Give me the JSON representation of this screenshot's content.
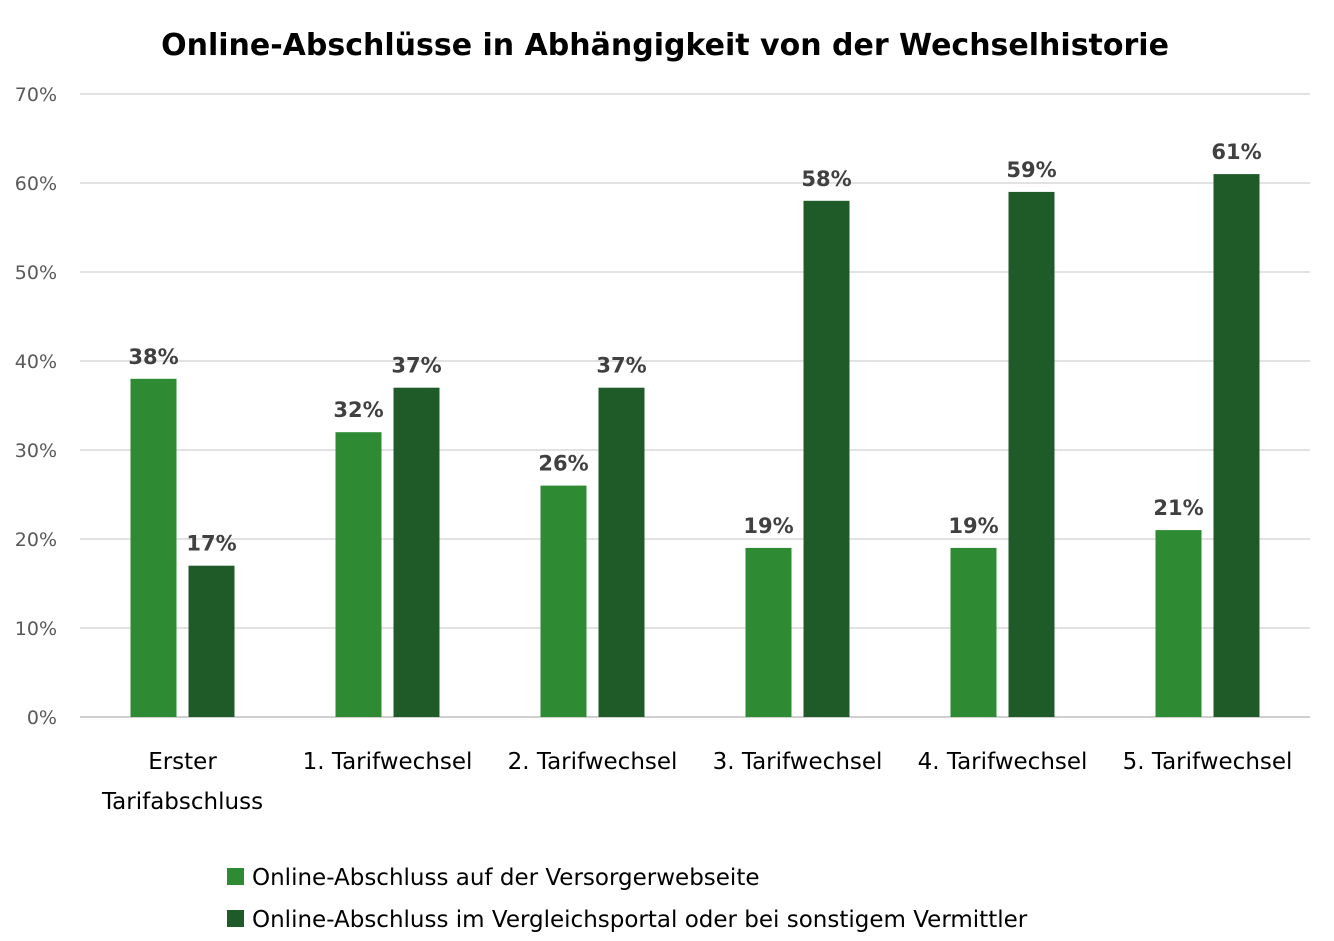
{
  "chart_data": {
    "type": "bar",
    "title": "Online-Abschlüsse in Abhängigkeit von der Wechselhistorie",
    "xlabel": "",
    "ylabel": "",
    "categories": [
      [
        "Erster",
        "Tarifabschluss"
      ],
      [
        "1. Tarifwechsel"
      ],
      [
        "2. Tarifwechsel"
      ],
      [
        "3. Tarifwechsel"
      ],
      [
        "4. Tarifwechsel"
      ],
      [
        "5. Tarifwechsel"
      ]
    ],
    "series": [
      {
        "name": "Online-Abschluss auf der Versorgerwebseite",
        "color": "#2e8b33",
        "values": [
          38,
          32,
          26,
          19,
          19,
          21
        ],
        "labels": [
          "38%",
          "32%",
          "26%",
          "19%",
          "19%",
          "21%"
        ]
      },
      {
        "name": "Online-Abschluss im Vergleichsportal oder bei sonstigem Vermittler",
        "color": "#1e5b28",
        "values": [
          17,
          37,
          37,
          58,
          59,
          61
        ],
        "labels": [
          "17%",
          "37%",
          "37%",
          "58%",
          "59%",
          "61%"
        ]
      }
    ],
    "ylim": [
      0,
      70
    ],
    "yticks": [
      0,
      10,
      20,
      30,
      40,
      50,
      60,
      70
    ],
    "ytick_labels": [
      "0%",
      "10%",
      "20%",
      "30%",
      "40%",
      "50%",
      "60%",
      "70%"
    ],
    "grid": true,
    "legend_position": "bottom"
  }
}
